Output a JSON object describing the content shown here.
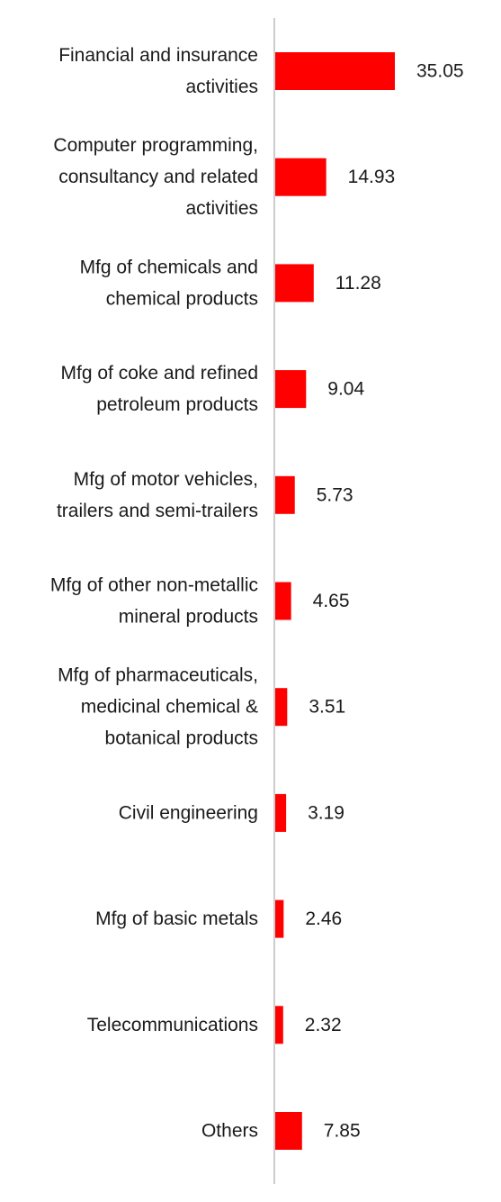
{
  "chart_data": {
    "type": "bar",
    "orientation": "horizontal",
    "title": "",
    "xlabel": "",
    "ylabel": "",
    "grid": false,
    "legend": "none",
    "bar_color": "#ff0000",
    "axis_color": "#cccccc",
    "xlim": [
      0,
      35.05
    ],
    "categories": [
      [
        "Financial and insurance",
        "activities"
      ],
      [
        "Computer programming,",
        "consultancy and related",
        "activities"
      ],
      [
        "Mfg of chemicals and",
        "chemical products"
      ],
      [
        "Mfg of coke and refined",
        "petroleum products"
      ],
      [
        "Mfg of motor vehicles,",
        "trailers and semi-trailers"
      ],
      [
        "Mfg of other non-metallic",
        "mineral products"
      ],
      [
        "Mfg of pharmaceuticals,",
        "medicinal chemical &",
        "botanical products"
      ],
      [
        "Civil engineering"
      ],
      [
        "Mfg of basic metals"
      ],
      [
        "Telecommunications"
      ],
      [
        "Others"
      ]
    ],
    "values": [
      35.05,
      14.93,
      11.28,
      9.04,
      5.73,
      4.65,
      3.51,
      3.19,
      2.46,
      2.32,
      7.85
    ],
    "value_labels": [
      "35.05",
      "14.93",
      "11.28",
      "9.04",
      "5.73",
      "4.65",
      "3.51",
      "3.19",
      "2.46",
      "2.32",
      "7.85"
    ]
  }
}
